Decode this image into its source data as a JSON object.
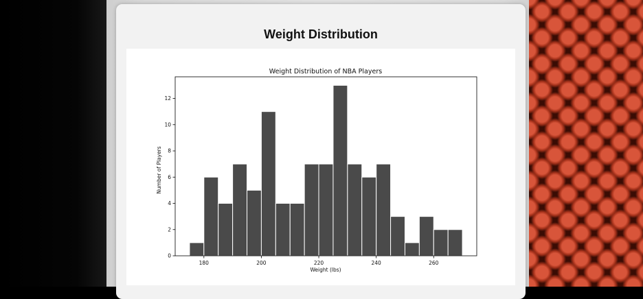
{
  "page": {
    "title": "Weight Distribution"
  },
  "chart_data": {
    "type": "bar",
    "title": "Weight Distribution of NBA Players",
    "xlabel": "Weight (lbs)",
    "ylabel": "Number of Players",
    "x_ticks": [
      180,
      200,
      220,
      240,
      260
    ],
    "y_ticks": [
      0,
      2,
      4,
      6,
      8,
      10,
      12
    ],
    "xlim": [
      170,
      275
    ],
    "ylim": [
      0,
      13.65
    ],
    "bin_edges": [
      175,
      180,
      185,
      190,
      195,
      200,
      205,
      210,
      215,
      220,
      225,
      230,
      235,
      240,
      245,
      250,
      255,
      260,
      265,
      270
    ],
    "values": [
      1,
      6,
      4,
      7,
      5,
      11,
      4,
      4,
      7,
      7,
      13,
      7,
      6,
      7,
      3,
      1,
      3,
      2,
      2
    ],
    "bar_color": "#4a4a4a",
    "edge_color": "#ffffff",
    "grid": false
  }
}
